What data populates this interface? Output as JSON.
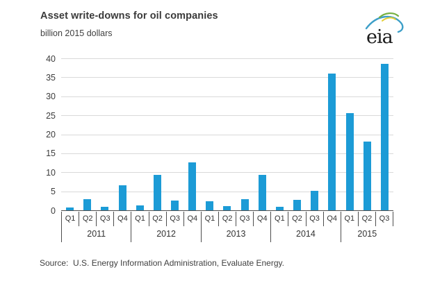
{
  "header": {
    "title": "Asset write-downs for oil companies",
    "subtitle": "billion 2015 dollars"
  },
  "logo": {
    "text": "eia",
    "arc_blue": "#3d9fc8",
    "arc_green": "#76b043",
    "arc_yellow": "#e3ce36",
    "text_color": "#1a1a1a"
  },
  "footer": {
    "source": "Source:  U.S. Energy Information Administration, Evaluate Energy."
  },
  "colors": {
    "bar": "#1c9bd6",
    "gridline": "#d9d9d9",
    "axis": "#4d4d4d",
    "text": "#3c3c3c"
  },
  "chart_data": {
    "type": "bar",
    "title": "Asset write-downs for oil companies",
    "units_label": "billion 2015 dollars",
    "xlabel": "",
    "ylabel": "billion 2015 dollars",
    "ylim": [
      0,
      40
    ],
    "ytick_step": 5,
    "grid": true,
    "legend": false,
    "bar_color": "#1c9bd6",
    "categories": [
      "Q1",
      "Q2",
      "Q3",
      "Q4",
      "Q1",
      "Q2",
      "Q3",
      "Q4",
      "Q1",
      "Q2",
      "Q3",
      "Q4",
      "Q1",
      "Q2",
      "Q3",
      "Q4",
      "Q1",
      "Q2",
      "Q3"
    ],
    "groups": [
      {
        "label": "2011",
        "quarters": 4
      },
      {
        "label": "2012",
        "quarters": 4
      },
      {
        "label": "2013",
        "quarters": 4
      },
      {
        "label": "2014",
        "quarters": 4
      },
      {
        "label": "2015",
        "quarters": 3
      }
    ],
    "values": [
      0.7,
      2.9,
      1.0,
      6.6,
      1.2,
      9.4,
      2.6,
      12.6,
      2.3,
      1.1,
      2.9,
      9.3,
      0.9,
      2.8,
      5.2,
      36.0,
      25.5,
      18.1,
      38.5
    ]
  }
}
